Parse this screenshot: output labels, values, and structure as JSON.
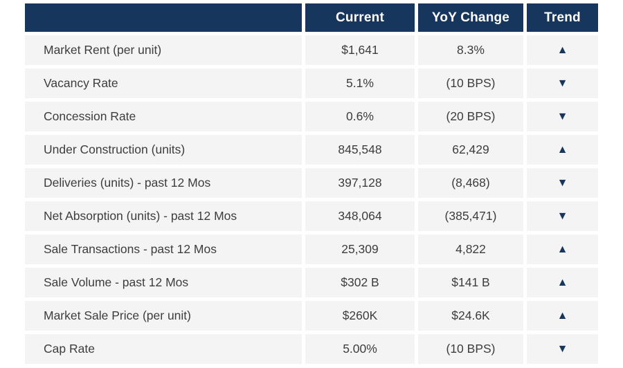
{
  "chart_data": {
    "type": "table",
    "columns": [
      "",
      "Current",
      "YoY Change",
      "Trend"
    ],
    "rows": [
      {
        "metric": "Market Rent (per unit)",
        "current": "$1,641",
        "yoy_change": "8.3%",
        "trend": "up"
      },
      {
        "metric": "Vacancy Rate",
        "current": "5.1%",
        "yoy_change": "(10 BPS)",
        "trend": "down"
      },
      {
        "metric": "Concession Rate",
        "current": "0.6%",
        "yoy_change": "(20 BPS)",
        "trend": "down"
      },
      {
        "metric": "Under Construction (units)",
        "current": "845,548",
        "yoy_change": "62,429",
        "trend": "up"
      },
      {
        "metric": "Deliveries (units) - past 12 Mos",
        "current": "397,128",
        "yoy_change": "(8,468)",
        "trend": "down"
      },
      {
        "metric": "Net Absorption (units) - past 12 Mos",
        "current": "348,064",
        "yoy_change": "(385,471)",
        "trend": "down"
      },
      {
        "metric": "Sale Transactions - past 12 Mos",
        "current": "25,309",
        "yoy_change": "4,822",
        "trend": "up"
      },
      {
        "metric": "Sale Volume - past 12 Mos",
        "current": "$302 B",
        "yoy_change": "$141 B",
        "trend": "up"
      },
      {
        "metric": "Market Sale Price (per unit)",
        "current": "$260K",
        "yoy_change": "$24.6K",
        "trend": "up"
      },
      {
        "metric": "Cap Rate",
        "current": "5.00%",
        "yoy_change": "(10 BPS)",
        "trend": "down"
      }
    ]
  },
  "icons": {
    "up": "▲",
    "down": "▼"
  },
  "colors": {
    "header_bg": "#17365d",
    "header_text": "#ffffff",
    "row_bg": "#f4f4f4",
    "body_text": "#3d3d3d",
    "trend_icon": "#17365d"
  }
}
